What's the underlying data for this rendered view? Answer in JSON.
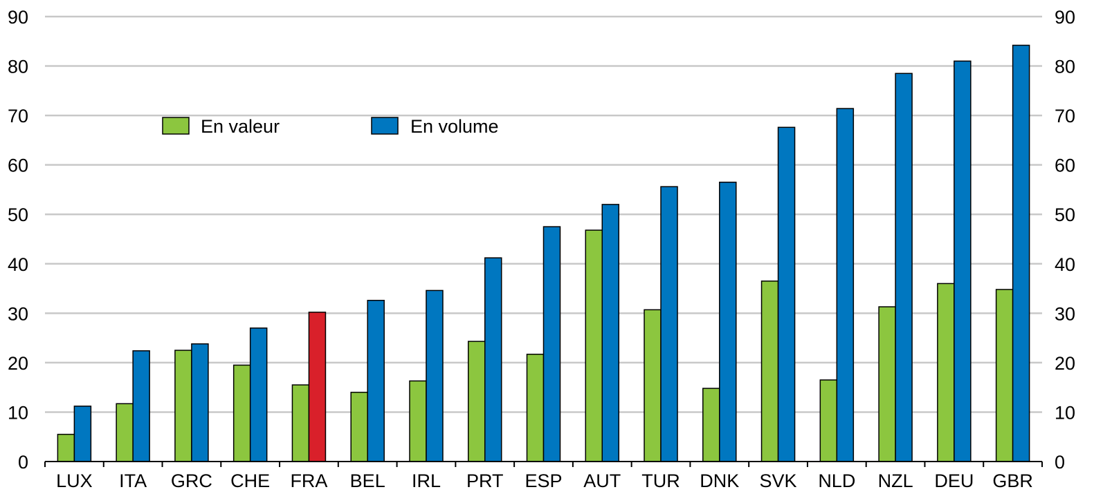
{
  "chart_data": {
    "type": "bar",
    "categories": [
      "LUX",
      "ITA",
      "GRC",
      "CHE",
      "FRA",
      "BEL",
      "IRL",
      "PRT",
      "ESP",
      "AUT",
      "TUR",
      "DNK",
      "SVK",
      "NLD",
      "NZL",
      "DEU",
      "GBR"
    ],
    "series": [
      {
        "name": "En valeur",
        "color": "#8cc63f",
        "values": [
          5.5,
          11.7,
          22.5,
          19.5,
          15.5,
          14.0,
          16.3,
          24.3,
          21.7,
          46.8,
          30.7,
          14.8,
          36.5,
          16.5,
          31.3,
          36.0,
          34.8
        ]
      },
      {
        "name": "En volume",
        "color": "#0077c0",
        "values": [
          11.2,
          22.4,
          23.8,
          27.0,
          30.2,
          32.6,
          34.6,
          41.2,
          47.5,
          52.0,
          55.6,
          56.5,
          67.6,
          71.4,
          78.5,
          81.0,
          84.2
        ]
      }
    ],
    "highlight": {
      "category": "FRA",
      "series": "En volume",
      "color": "#d9202a"
    },
    "ylim": [
      0,
      90
    ],
    "yticks": [
      "0",
      "10",
      "20",
      "30",
      "40",
      "50",
      "60",
      "70",
      "80",
      "90"
    ],
    "grid": true,
    "legend_position": "top-left",
    "title": "",
    "xlabel": "",
    "ylabel": ""
  }
}
